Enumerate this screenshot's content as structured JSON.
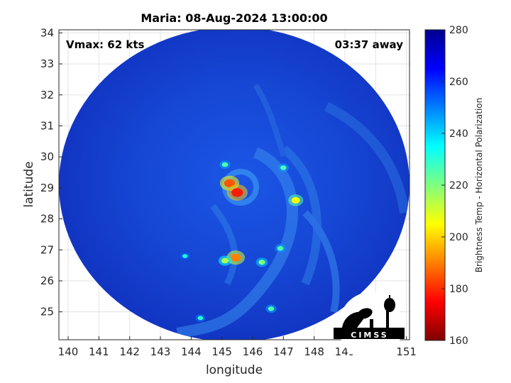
{
  "chart_data": {
    "type": "heatmap",
    "title": "Maria: 08-Aug-2024 13:00:00",
    "xlabel": "longitude",
    "ylabel": "latitude",
    "xlim": [
      139.7,
      151.1
    ],
    "ylim": [
      24.1,
      34.1
    ],
    "xticks": [
      "140",
      "141",
      "142",
      "143",
      "144",
      "145",
      "146",
      "147",
      "148",
      "149",
      "150",
      "151"
    ],
    "yticks": [
      "25",
      "26",
      "27",
      "28",
      "29",
      "30",
      "31",
      "32",
      "33",
      "34"
    ],
    "grid": true,
    "annotations": {
      "vmax": "Vmax: 62 kts",
      "time_away": "03:37 away"
    },
    "swath": {
      "center_lon": 145.4,
      "center_lat": 29.05,
      "edge": "circular"
    },
    "storm_center": {
      "lon": 145.45,
      "lat": 29.05
    },
    "warm_cells": [
      {
        "lon": 145.25,
        "lat": 29.15,
        "tb": 185
      },
      {
        "lon": 145.5,
        "lat": 28.85,
        "tb": 178
      },
      {
        "lon": 145.45,
        "lat": 26.75,
        "tb": 190
      },
      {
        "lon": 145.1,
        "lat": 26.65,
        "tb": 215
      },
      {
        "lon": 147.4,
        "lat": 28.6,
        "tb": 205
      },
      {
        "lon": 147.0,
        "lat": 29.65,
        "tb": 225
      },
      {
        "lon": 146.9,
        "lat": 27.05,
        "tb": 225
      },
      {
        "lon": 145.1,
        "lat": 29.75,
        "tb": 225
      },
      {
        "lon": 146.3,
        "lat": 26.6,
        "tb": 220
      },
      {
        "lon": 146.6,
        "lat": 25.1,
        "tb": 225
      },
      {
        "lon": 144.3,
        "lat": 24.8,
        "tb": 230
      },
      {
        "lon": 143.8,
        "lat": 26.8,
        "tb": 232
      }
    ],
    "colorbar": {
      "label": "Brightness Temp - Horizontal Polarization",
      "range": [
        160,
        280
      ],
      "ticks": [
        "280",
        "260",
        "240",
        "220",
        "200",
        "180",
        "160"
      ],
      "colormap": "jet"
    }
  },
  "logo": {
    "text": "CIMSS"
  }
}
